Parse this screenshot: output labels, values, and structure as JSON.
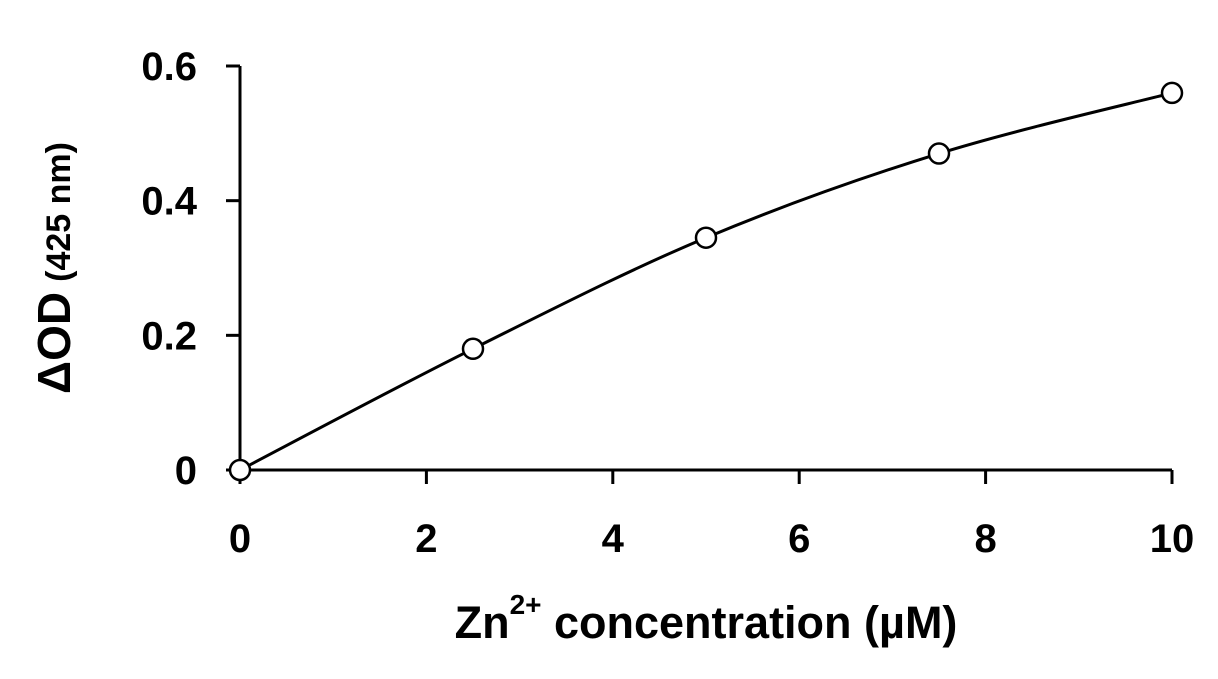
{
  "chart_data": {
    "type": "scatter",
    "title": "",
    "xlabel": {
      "prefix": "Zn",
      "superscript": "2+",
      "suffix": " concentration (µM)"
    },
    "ylabel": {
      "main": "ΔOD",
      "sub": "(425 nm)"
    },
    "xlim": [
      0,
      10
    ],
    "ylim": [
      0,
      0.6
    ],
    "x_ticks": [
      0,
      2,
      4,
      6,
      8,
      10
    ],
    "x_tick_labels": [
      "0",
      "2",
      "4",
      "6",
      "8",
      "10"
    ],
    "y_ticks": [
      0,
      0.2,
      0.4,
      0.6
    ],
    "y_tick_labels": [
      "0",
      "0.2",
      "0.4",
      "0.6"
    ],
    "grid": false,
    "legend": "none",
    "series": [
      {
        "marker": "open-circle",
        "x": [
          0,
          2.5,
          5,
          7.5,
          10
        ],
        "y": [
          0,
          0.18,
          0.345,
          0.47,
          0.56
        ]
      }
    ],
    "fit_line": {
      "style": "smooth-solid",
      "x": [
        0,
        2.5,
        5,
        7.5,
        10
      ],
      "y": [
        0,
        0.18,
        0.345,
        0.47,
        0.56
      ]
    },
    "colors": {
      "axis": "#000000",
      "marker_stroke": "#000000",
      "marker_fill": "#ffffff",
      "line": "#000000"
    }
  }
}
